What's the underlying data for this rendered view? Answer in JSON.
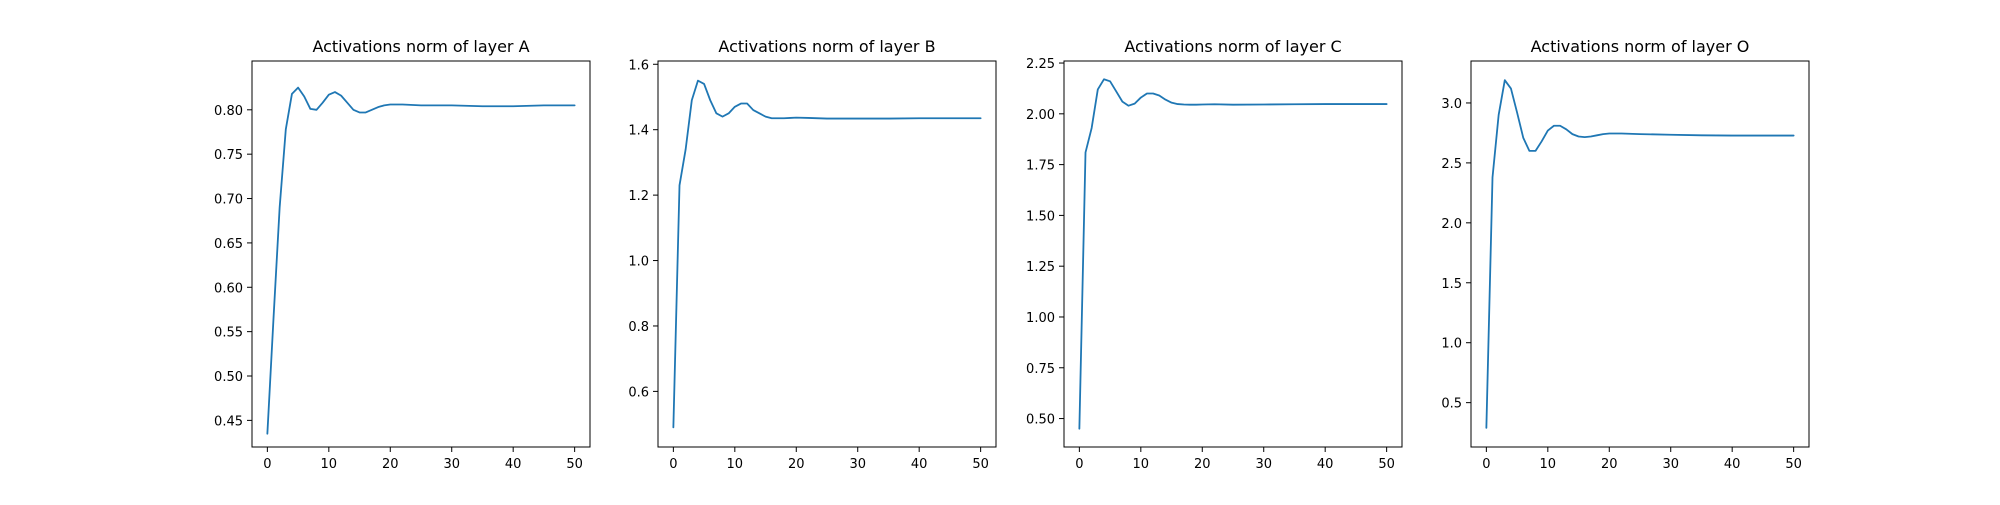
{
  "figure": {
    "background": "#ffffff",
    "line_color": "#1f77b4"
  },
  "chart_data": [
    {
      "type": "line",
      "title": "Activations norm of layer A",
      "xlabel": "",
      "ylabel": "",
      "xlim": [
        -2.5,
        52.5
      ],
      "ylim": [
        0.42,
        0.855
      ],
      "xticks": [
        0,
        10,
        20,
        30,
        40,
        50
      ],
      "yticks": [
        0.45,
        0.5,
        0.55,
        0.6,
        0.65,
        0.7,
        0.75,
        0.8
      ],
      "ytick_labels": [
        "0.45",
        "0.50",
        "0.55",
        "0.60",
        "0.65",
        "0.70",
        "0.75",
        "0.80"
      ],
      "grid": false,
      "series": [
        {
          "x": [
            0,
            1,
            2,
            3,
            4,
            5,
            6,
            7,
            8,
            9,
            10,
            11,
            12,
            13,
            14,
            15,
            16,
            17,
            18,
            19,
            20,
            22,
            25,
            30,
            35,
            40,
            45,
            50
          ],
          "y": [
            0.435,
            0.565,
            0.69,
            0.778,
            0.818,
            0.825,
            0.815,
            0.801,
            0.8,
            0.808,
            0.817,
            0.82,
            0.816,
            0.808,
            0.8,
            0.797,
            0.797,
            0.8,
            0.803,
            0.805,
            0.806,
            0.806,
            0.805,
            0.805,
            0.804,
            0.804,
            0.805,
            0.805
          ]
        }
      ]
    },
    {
      "type": "line",
      "title": "Activations norm of layer B",
      "xlabel": "",
      "ylabel": "",
      "xlim": [
        -2.5,
        52.5
      ],
      "ylim": [
        0.43,
        1.61
      ],
      "xticks": [
        0,
        10,
        20,
        30,
        40,
        50
      ],
      "yticks": [
        0.6,
        0.8,
        1.0,
        1.2,
        1.4,
        1.6
      ],
      "ytick_labels": [
        "0.6",
        "0.8",
        "1.0",
        "1.2",
        "1.4",
        "1.6"
      ],
      "grid": false,
      "series": [
        {
          "x": [
            0,
            1,
            2,
            3,
            4,
            5,
            6,
            7,
            8,
            9,
            10,
            11,
            12,
            13,
            14,
            15,
            16,
            17,
            18,
            19,
            20,
            22,
            25,
            30,
            35,
            40,
            45,
            50
          ],
          "y": [
            0.49,
            1.23,
            1.34,
            1.49,
            1.55,
            1.54,
            1.49,
            1.45,
            1.44,
            1.45,
            1.47,
            1.48,
            1.48,
            1.46,
            1.45,
            1.44,
            1.435,
            1.435,
            1.435,
            1.436,
            1.437,
            1.436,
            1.434,
            1.434,
            1.434,
            1.435,
            1.435,
            1.435
          ]
        }
      ]
    },
    {
      "type": "line",
      "title": "Activations norm of layer C",
      "xlabel": "",
      "ylabel": "",
      "xlim": [
        -2.5,
        52.5
      ],
      "ylim": [
        0.36,
        2.26
      ],
      "xticks": [
        0,
        10,
        20,
        30,
        40,
        50
      ],
      "yticks": [
        0.5,
        0.75,
        1.0,
        1.25,
        1.5,
        1.75,
        2.0,
        2.25
      ],
      "ytick_labels": [
        "0.50",
        "0.75",
        "1.00",
        "1.25",
        "1.50",
        "1.75",
        "2.00",
        "2.25"
      ],
      "grid": false,
      "series": [
        {
          "x": [
            0,
            1,
            2,
            3,
            4,
            5,
            6,
            7,
            8,
            9,
            10,
            11,
            12,
            13,
            14,
            15,
            16,
            17,
            18,
            19,
            20,
            22,
            25,
            30,
            35,
            40,
            45,
            50
          ],
          "y": [
            0.45,
            1.81,
            1.93,
            2.12,
            2.17,
            2.16,
            2.11,
            2.06,
            2.04,
            2.05,
            2.08,
            2.1,
            2.1,
            2.09,
            2.07,
            2.055,
            2.048,
            2.046,
            2.045,
            2.045,
            2.046,
            2.047,
            2.045,
            2.046,
            2.047,
            2.048,
            2.048,
            2.048
          ]
        }
      ]
    },
    {
      "type": "line",
      "title": "Activations norm of layer O",
      "xlabel": "",
      "ylabel": "",
      "xlim": [
        -2.5,
        52.5
      ],
      "ylim": [
        0.13,
        3.35
      ],
      "xticks": [
        0,
        10,
        20,
        30,
        40,
        50
      ],
      "yticks": [
        0.5,
        1.0,
        1.5,
        2.0,
        2.5,
        3.0
      ],
      "ytick_labels": [
        "0.5",
        "1.0",
        "1.5",
        "2.0",
        "2.5",
        "3.0"
      ],
      "grid": false,
      "series": [
        {
          "x": [
            0,
            1,
            2,
            3,
            4,
            5,
            6,
            7,
            8,
            9,
            10,
            11,
            12,
            13,
            14,
            15,
            16,
            17,
            18,
            19,
            20,
            22,
            25,
            30,
            35,
            40,
            45,
            50
          ],
          "y": [
            0.29,
            2.38,
            2.9,
            3.19,
            3.12,
            2.92,
            2.71,
            2.6,
            2.6,
            2.68,
            2.77,
            2.81,
            2.81,
            2.78,
            2.74,
            2.72,
            2.715,
            2.72,
            2.73,
            2.74,
            2.745,
            2.745,
            2.74,
            2.735,
            2.73,
            2.728,
            2.728,
            2.728
          ]
        }
      ]
    }
  ]
}
